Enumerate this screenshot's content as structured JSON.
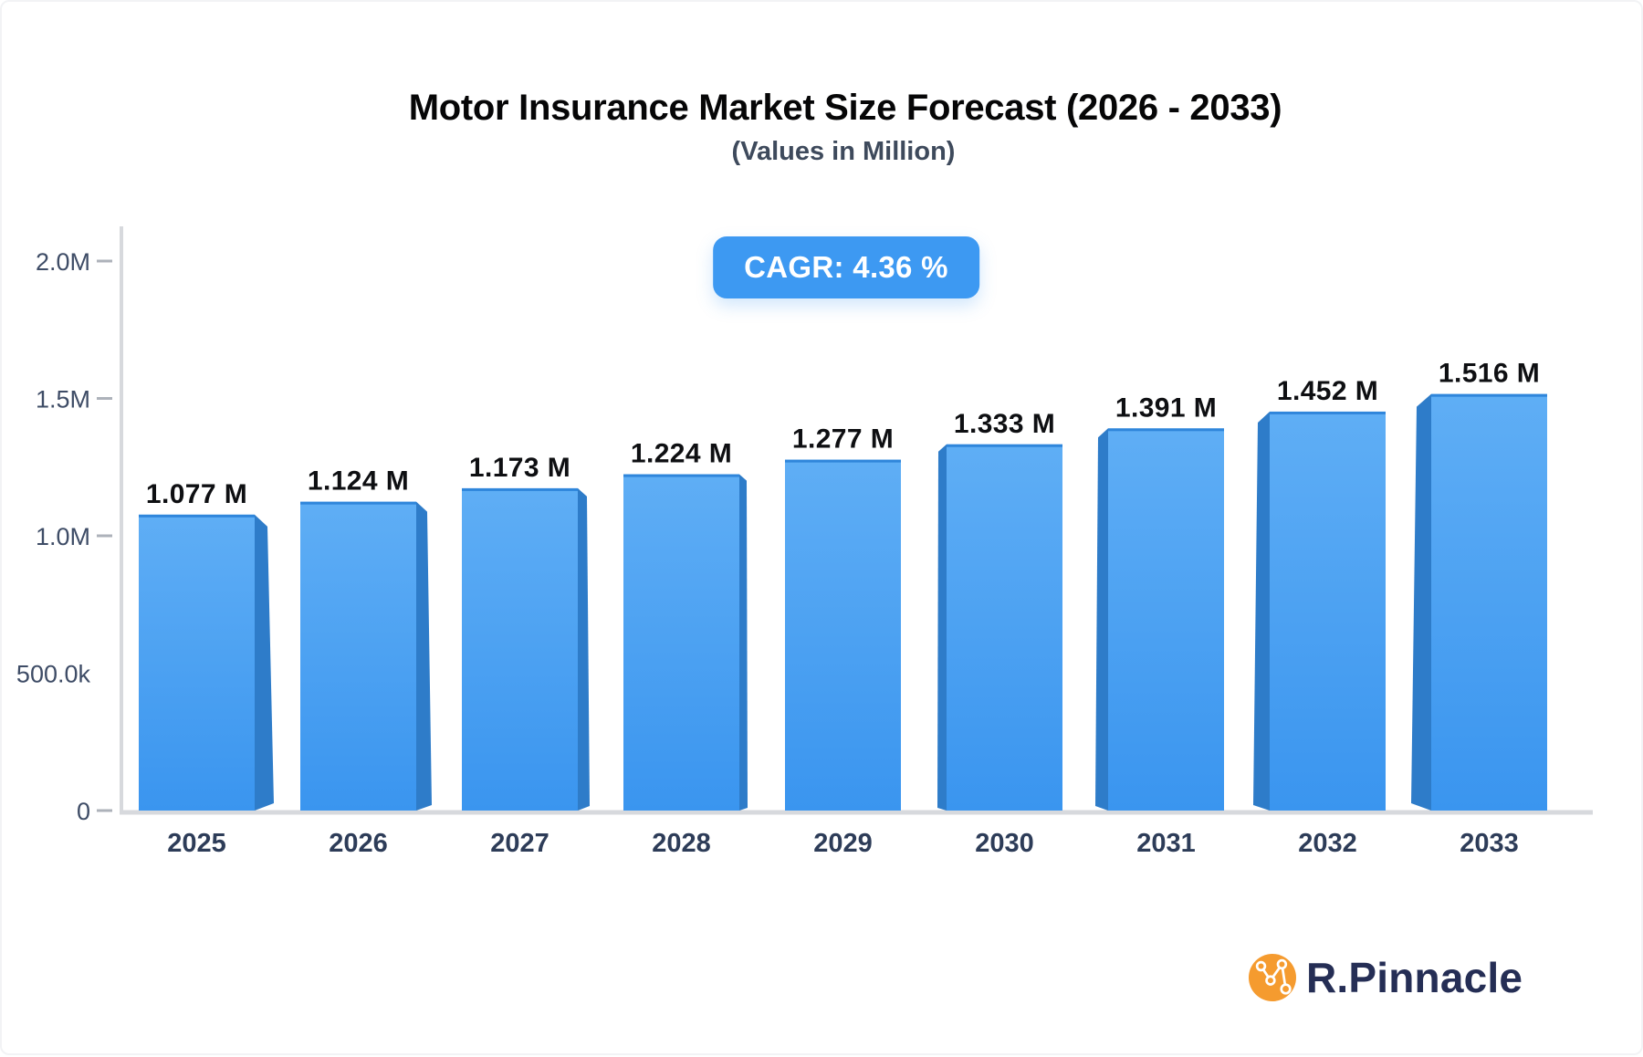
{
  "header": {
    "title": "Motor Insurance Market Size Forecast (2026 - 2033)",
    "subtitle": "(Values in Million)",
    "badge": "CAGR: 4.36 %"
  },
  "chart_data": {
    "type": "bar",
    "title": "Motor Insurance Market Size Forecast (2026 - 2033)",
    "subtitle": "(Values in Million)",
    "annotation": "CAGR: 4.36 %",
    "categories": [
      "2025",
      "2026",
      "2027",
      "2028",
      "2029",
      "2030",
      "2031",
      "2032",
      "2033"
    ],
    "values": [
      1.077,
      1.124,
      1.173,
      1.224,
      1.277,
      1.333,
      1.391,
      1.452,
      1.516
    ],
    "value_labels": [
      "1.077 M",
      "1.124 M",
      "1.173 M",
      "1.224 M",
      "1.277 M",
      "1.333 M",
      "1.391 M",
      "1.452 M",
      "1.516 M"
    ],
    "unit": "M",
    "xlabel": "",
    "ylabel": "",
    "ylim": [
      0,
      2.0
    ],
    "yticks": [
      {
        "label": "2.0M",
        "value": 2.0,
        "dash": true
      },
      {
        "label": "1.5M",
        "value": 1.5,
        "dash": true
      },
      {
        "label": "1.0M",
        "value": 1.0,
        "dash": true
      },
      {
        "label": "500.0k",
        "value": 0.5,
        "dash": false
      },
      {
        "label": "0",
        "value": 0.0,
        "dash": true
      }
    ],
    "grid": false,
    "legend": false,
    "style_note": "3D perspective bars; side faces angle toward center bar (2029)"
  },
  "branding": {
    "name": "R.Pinnacle",
    "icon": "network-graph-icon"
  },
  "colors": {
    "background": "#FFFFFF",
    "frame": "#F2F3F5",
    "accent": "#3D99F2",
    "badge_text": "#FFFFFF",
    "title": "#060607",
    "subtitle": "#3E4A5C",
    "bar_front_top": "#5FAEF5",
    "bar_front_bottom": "#3A95EF",
    "bar_side": "#2E7CC9",
    "bar_top_edge": "#2F86DB",
    "axis": "#D7D9DD",
    "tick": "#ADB2BA",
    "ytick_text": "#3E4C66",
    "xtick_text": "#2D3C58",
    "value_text": "#0E0F12",
    "brand_text": "#252E55",
    "brand_icon": "#F59B2F"
  }
}
